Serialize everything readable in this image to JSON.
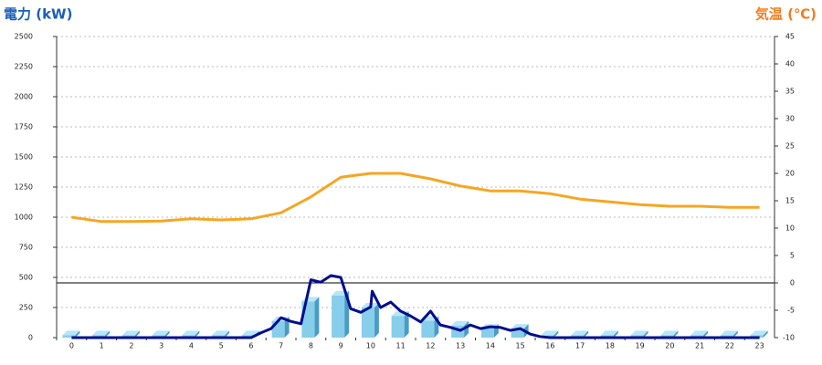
{
  "chart_data": {
    "type": "combo",
    "y_label": "電力 (kW)",
    "y2_label": "気温 (℃)",
    "categories": [
      "0",
      "1",
      "2",
      "3",
      "4",
      "5",
      "6",
      "7",
      "8",
      "9",
      "10",
      "11",
      "12",
      "13",
      "14",
      "15",
      "16",
      "17",
      "18",
      "19",
      "20",
      "21",
      "22",
      "23"
    ],
    "ylim": [
      0,
      2500
    ],
    "yticks": [
      0,
      250,
      500,
      750,
      1000,
      1250,
      1500,
      1750,
      2000,
      2250,
      2500
    ],
    "y2lim": [
      -10,
      45
    ],
    "y2ticks": [
      -10,
      -5,
      0,
      5,
      10,
      15,
      20,
      25,
      30,
      35,
      40,
      45
    ],
    "grid": true,
    "series": [
      {
        "type": "bar",
        "color": "#87ceeb",
        "values": [
          20,
          20,
          20,
          20,
          20,
          20,
          20,
          136,
          300,
          350,
          250,
          180,
          140,
          100,
          75,
          75,
          20,
          20,
          20,
          20,
          20,
          20,
          20,
          20
        ]
      },
      {
        "type": "line",
        "color": "#000e8c",
        "x": [
          0,
          6,
          6.33,
          6.67,
          7,
          7.33,
          7.67,
          8,
          8.33,
          8.67,
          9,
          9.33,
          9.67,
          10,
          10.05,
          10.33,
          10.67,
          11,
          11.33,
          11.67,
          12,
          12.33,
          12.67,
          13,
          13.33,
          13.67,
          14,
          14.33,
          14.67,
          15,
          15.33,
          15.67,
          16,
          23
        ],
        "values": [
          0,
          0,
          40,
          75,
          165,
          135,
          115,
          480,
          460,
          515,
          500,
          240,
          210,
          255,
          385,
          250,
          295,
          220,
          180,
          130,
          220,
          105,
          85,
          60,
          105,
          75,
          90,
          85,
          60,
          75,
          30,
          8,
          0,
          0
        ]
      },
      {
        "type": "line",
        "axis": "y2",
        "color": "#f5a623",
        "values": [
          12,
          11.2,
          11.2,
          11.3,
          11.7,
          11.5,
          11.7,
          12.8,
          15.7,
          19.3,
          20,
          20,
          19,
          17.7,
          16.8,
          16.8,
          16.3,
          15.3,
          14.8,
          14.3,
          14,
          14,
          13.8,
          13.8
        ]
      }
    ]
  }
}
